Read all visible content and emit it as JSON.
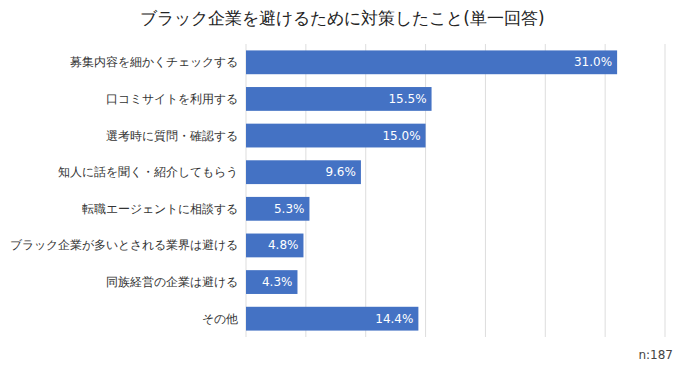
{
  "chart_data": {
    "type": "bar",
    "orientation": "horizontal",
    "title": "ブラック企業を避けるために対策したこと(単一回答)",
    "categories": [
      "募集内容を細かくチェックする",
      "口コミサイトを利用する",
      "選考時に質問・確認する",
      "知人に話を聞く・紹介してもらう",
      "転職エージェントに相談する",
      "ブラック企業が多いとされる業界は避ける",
      "同族経営の企業は避ける",
      "その他"
    ],
    "values": [
      31.0,
      15.5,
      15.0,
      9.6,
      5.3,
      4.8,
      4.3,
      14.4
    ],
    "value_labels": [
      "31.0%",
      "15.5%",
      "15.0%",
      "9.6%",
      "5.3%",
      "4.8%",
      "4.3%",
      "14.4%"
    ],
    "data_labels": true,
    "color": "#4472C4",
    "xlim": [
      0,
      35
    ],
    "xticks": [
      0,
      5,
      10,
      15,
      20,
      25,
      30,
      35
    ],
    "grid": true,
    "tick_labels": "y",
    "annotations": [
      "n:187"
    ]
  }
}
